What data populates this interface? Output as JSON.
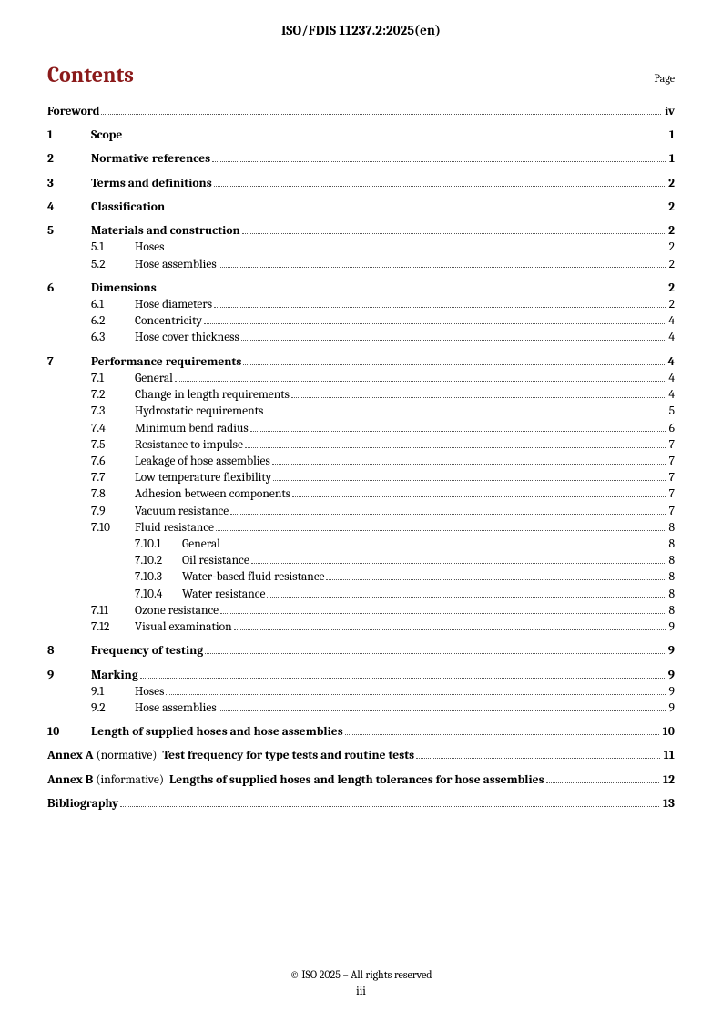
{
  "header": {
    "doc_id": "ISO/FDIS 11237.2:2025(en)"
  },
  "contents": {
    "title": "Contents",
    "page_label": "Page"
  },
  "colors": {
    "heading": "#8b1a1a",
    "leader": "#555555",
    "text": "#000000",
    "background": "#ffffff"
  },
  "fonts": {
    "body_pt": 13.5,
    "title_pt": 24,
    "header_pt": 15,
    "footer_pt": 12
  },
  "toc": {
    "foreword": {
      "label": "Foreword",
      "page": "iv"
    },
    "s1": {
      "num": "1",
      "label": "Scope",
      "page": "1"
    },
    "s2": {
      "num": "2",
      "label": "Normative references",
      "page": "1"
    },
    "s3": {
      "num": "3",
      "label": "Terms and definitions",
      "page": "2"
    },
    "s4": {
      "num": "4",
      "label": "Classification",
      "page": "2"
    },
    "s5": {
      "num": "5",
      "label": "Materials and construction",
      "page": "2",
      "s5_1": {
        "num": "5.1",
        "label": "Hoses",
        "page": "2"
      },
      "s5_2": {
        "num": "5.2",
        "label": "Hose assemblies",
        "page": "2"
      }
    },
    "s6": {
      "num": "6",
      "label": "Dimensions",
      "page": "2",
      "s6_1": {
        "num": "6.1",
        "label": "Hose diameters",
        "page": "2"
      },
      "s6_2": {
        "num": "6.2",
        "label": "Concentricity",
        "page": "4"
      },
      "s6_3": {
        "num": "6.3",
        "label": "Hose cover thickness",
        "page": "4"
      }
    },
    "s7": {
      "num": "7",
      "label": "Performance requirements",
      "page": "4",
      "s7_1": {
        "num": "7.1",
        "label": "General",
        "page": "4"
      },
      "s7_2": {
        "num": "7.2",
        "label": "Change in length requirements",
        "page": "4"
      },
      "s7_3": {
        "num": "7.3",
        "label": "Hydrostatic requirements",
        "page": "5"
      },
      "s7_4": {
        "num": "7.4",
        "label": "Minimum bend radius",
        "page": "6"
      },
      "s7_5": {
        "num": "7.5",
        "label": "Resistance to impulse",
        "page": "7"
      },
      "s7_6": {
        "num": "7.6",
        "label": "Leakage of hose assemblies",
        "page": "7"
      },
      "s7_7": {
        "num": "7.7",
        "label": "Low temperature flexibility",
        "page": "7"
      },
      "s7_8": {
        "num": "7.8",
        "label": "Adhesion between components",
        "page": "7"
      },
      "s7_9": {
        "num": "7.9",
        "label": "Vacuum resistance",
        "page": "7"
      },
      "s7_10": {
        "num": "7.10",
        "label": "Fluid resistance",
        "page": "8",
        "s7_10_1": {
          "num": "7.10.1",
          "label": "General",
          "page": "8"
        },
        "s7_10_2": {
          "num": "7.10.2",
          "label": "Oil resistance",
          "page": "8"
        },
        "s7_10_3": {
          "num": "7.10.3",
          "label": "Water-based fluid resistance",
          "page": "8"
        },
        "s7_10_4": {
          "num": "7.10.4",
          "label": "Water resistance",
          "page": "8"
        }
      },
      "s7_11": {
        "num": "7.11",
        "label": "Ozone resistance",
        "page": "8"
      },
      "s7_12": {
        "num": "7.12",
        "label": "Visual examination",
        "page": "9"
      }
    },
    "s8": {
      "num": "8",
      "label": "Frequency of testing",
      "page": "9"
    },
    "s9": {
      "num": "9",
      "label": "Marking",
      "page": "9",
      "s9_1": {
        "num": "9.1",
        "label": "Hoses",
        "page": "9"
      },
      "s9_2": {
        "num": "9.2",
        "label": "Hose assemblies",
        "page": "9"
      }
    },
    "s10": {
      "num": "10",
      "label": "Length of supplied hoses and hose assemblies",
      "page": "10"
    },
    "annexA": {
      "prefix": "Annex A",
      "type": "(normative)",
      "label": "Test frequency for type tests and routine tests",
      "page": "11"
    },
    "annexB": {
      "prefix": "Annex B",
      "type": "(informative)",
      "label": "Lengths of supplied hoses and length tolerances for hose assemblies",
      "page": "12"
    },
    "bibliography": {
      "label": "Bibliography",
      "page": "13"
    }
  },
  "footer": {
    "copyright": "© ISO 2025 – All rights reserved",
    "page_number": "iii"
  }
}
